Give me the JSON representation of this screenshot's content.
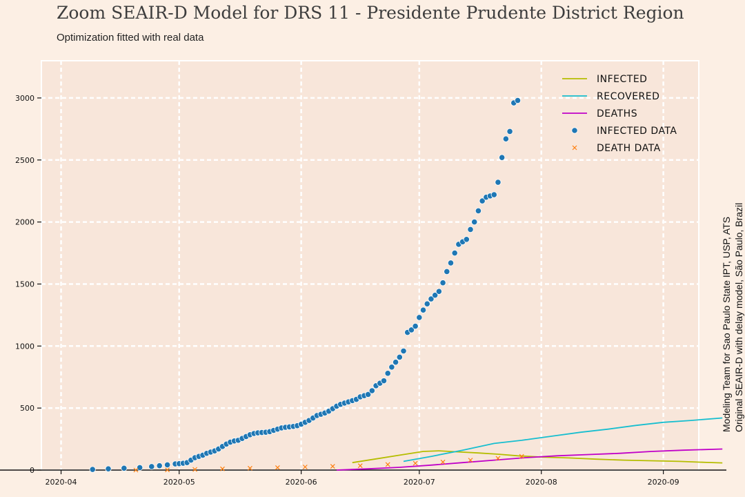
{
  "header": {
    "title": "Zoom SEAIR-D Model for DRS 11 - Presidente Prudente District Region",
    "subtitle": "Optimization fitted with real data"
  },
  "side_note": {
    "line1": "Modeling Team for Sao Paulo State IPT, USP, ATS",
    "line2": "Original SEAIR-D with delay model, São Paulo, Brazil"
  },
  "chart_data": {
    "type": "line",
    "title": "Zoom SEAIR-D Model for DRS 11 - Presidente Prudente District Region",
    "subtitle": "Optimization fitted with real data",
    "xlabel": "",
    "ylabel": "",
    "x_start_date": "2020-03-23",
    "x_ticks": [
      "2020-04",
      "2020-05",
      "2020-06",
      "2020-07",
      "2020-08",
      "2020-09"
    ],
    "y_ticks": [
      0,
      500,
      1000,
      1500,
      2000,
      2500,
      3000
    ],
    "ylim": [
      0,
      3300
    ],
    "xlim": [
      "2020-03-27",
      "2020-09-10"
    ],
    "grid": true,
    "legend_position": "top-right",
    "colors": {
      "infected": "#b5bd00",
      "recovered": "#17becf",
      "deaths": "#c000c8",
      "infected_data": "#1f77b4",
      "death_data": "#ff7f0e"
    },
    "series": [
      {
        "name": "Infected",
        "kind": "line",
        "color": "#b5bd00",
        "points": [
          [
            "2020-06-14",
            60
          ],
          [
            "2020-06-20",
            90
          ],
          [
            "2020-06-26",
            120
          ],
          [
            "2020-07-02",
            150
          ],
          [
            "2020-07-06",
            155
          ],
          [
            "2020-07-10",
            148
          ],
          [
            "2020-07-16",
            138
          ],
          [
            "2020-07-21",
            128
          ],
          [
            "2020-07-26",
            115
          ],
          [
            "2020-08-01",
            105
          ],
          [
            "2020-08-08",
            98
          ],
          [
            "2020-08-15",
            88
          ],
          [
            "2020-08-22",
            80
          ],
          [
            "2020-08-29",
            75
          ],
          [
            "2020-09-05",
            70
          ],
          [
            "2020-09-12",
            62
          ],
          [
            "2020-09-16",
            58
          ]
        ]
      },
      {
        "name": "Recovered",
        "kind": "line",
        "color": "#17becf",
        "points": [
          [
            "2020-06-27",
            70
          ],
          [
            "2020-07-04",
            110
          ],
          [
            "2020-07-12",
            160
          ],
          [
            "2020-07-20",
            215
          ],
          [
            "2020-07-27",
            240
          ],
          [
            "2020-08-04",
            275
          ],
          [
            "2020-08-11",
            305
          ],
          [
            "2020-08-18",
            330
          ],
          [
            "2020-08-25",
            360
          ],
          [
            "2020-09-01",
            385
          ],
          [
            "2020-09-08",
            400
          ],
          [
            "2020-09-16",
            420
          ]
        ]
      },
      {
        "name": "Deaths",
        "kind": "line",
        "color": "#c000c8",
        "points": [
          [
            "2020-06-10",
            0
          ],
          [
            "2020-06-18",
            10
          ],
          [
            "2020-06-26",
            22
          ],
          [
            "2020-07-04",
            40
          ],
          [
            "2020-07-12",
            60
          ],
          [
            "2020-07-20",
            80
          ],
          [
            "2020-07-28",
            100
          ],
          [
            "2020-08-05",
            115
          ],
          [
            "2020-08-13",
            125
          ],
          [
            "2020-08-21",
            135
          ],
          [
            "2020-08-29",
            150
          ],
          [
            "2020-09-06",
            160
          ],
          [
            "2020-09-16",
            170
          ]
        ]
      },
      {
        "name": "Infected data",
        "kind": "scatter",
        "marker": "circle",
        "color": "#1f77b4",
        "points": [
          [
            "2020-04-09",
            5
          ],
          [
            "2020-04-13",
            10
          ],
          [
            "2020-04-17",
            15
          ],
          [
            "2020-04-21",
            20
          ],
          [
            "2020-04-24",
            28
          ],
          [
            "2020-04-26",
            35
          ],
          [
            "2020-04-28",
            42
          ],
          [
            "2020-04-30",
            50
          ],
          [
            "2020-05-01",
            52
          ],
          [
            "2020-05-02",
            55
          ],
          [
            "2020-05-03",
            60
          ],
          [
            "2020-05-04",
            80
          ],
          [
            "2020-05-05",
            100
          ],
          [
            "2020-05-06",
            110
          ],
          [
            "2020-05-07",
            120
          ],
          [
            "2020-05-08",
            135
          ],
          [
            "2020-05-09",
            145
          ],
          [
            "2020-05-10",
            155
          ],
          [
            "2020-05-11",
            170
          ],
          [
            "2020-05-12",
            190
          ],
          [
            "2020-05-13",
            210
          ],
          [
            "2020-05-14",
            225
          ],
          [
            "2020-05-15",
            235
          ],
          [
            "2020-05-16",
            240
          ],
          [
            "2020-05-17",
            255
          ],
          [
            "2020-05-18",
            270
          ],
          [
            "2020-05-19",
            285
          ],
          [
            "2020-05-20",
            295
          ],
          [
            "2020-05-21",
            300
          ],
          [
            "2020-05-22",
            303
          ],
          [
            "2020-05-23",
            305
          ],
          [
            "2020-05-24",
            310
          ],
          [
            "2020-05-25",
            320
          ],
          [
            "2020-05-26",
            330
          ],
          [
            "2020-05-27",
            340
          ],
          [
            "2020-05-28",
            345
          ],
          [
            "2020-05-29",
            348
          ],
          [
            "2020-05-30",
            352
          ],
          [
            "2020-05-31",
            358
          ],
          [
            "2020-06-01",
            370
          ],
          [
            "2020-06-02",
            385
          ],
          [
            "2020-06-03",
            400
          ],
          [
            "2020-06-04",
            420
          ],
          [
            "2020-06-05",
            440
          ],
          [
            "2020-06-06",
            450
          ],
          [
            "2020-06-07",
            460
          ],
          [
            "2020-06-08",
            475
          ],
          [
            "2020-06-09",
            495
          ],
          [
            "2020-06-10",
            515
          ],
          [
            "2020-06-11",
            530
          ],
          [
            "2020-06-12",
            540
          ],
          [
            "2020-06-13",
            550
          ],
          [
            "2020-06-14",
            560
          ],
          [
            "2020-06-15",
            570
          ],
          [
            "2020-06-16",
            590
          ],
          [
            "2020-06-17",
            600
          ],
          [
            "2020-06-18",
            610
          ],
          [
            "2020-06-19",
            640
          ],
          [
            "2020-06-20",
            680
          ],
          [
            "2020-06-21",
            700
          ],
          [
            "2020-06-22",
            720
          ],
          [
            "2020-06-23",
            780
          ],
          [
            "2020-06-24",
            830
          ],
          [
            "2020-06-25",
            870
          ],
          [
            "2020-06-26",
            910
          ],
          [
            "2020-06-27",
            960
          ],
          [
            "2020-06-28",
            1110
          ],
          [
            "2020-06-29",
            1130
          ],
          [
            "2020-06-30",
            1160
          ],
          [
            "2020-07-01",
            1230
          ],
          [
            "2020-07-02",
            1290
          ],
          [
            "2020-07-03",
            1340
          ],
          [
            "2020-07-04",
            1380
          ],
          [
            "2020-07-05",
            1410
          ],
          [
            "2020-07-06",
            1440
          ],
          [
            "2020-07-07",
            1510
          ],
          [
            "2020-07-08",
            1600
          ],
          [
            "2020-07-09",
            1670
          ],
          [
            "2020-07-10",
            1750
          ],
          [
            "2020-07-11",
            1820
          ],
          [
            "2020-07-12",
            1840
          ],
          [
            "2020-07-13",
            1860
          ],
          [
            "2020-07-14",
            1940
          ],
          [
            "2020-07-15",
            2000
          ],
          [
            "2020-07-16",
            2090
          ],
          [
            "2020-07-17",
            2170
          ],
          [
            "2020-07-18",
            2200
          ],
          [
            "2020-07-19",
            2210
          ],
          [
            "2020-07-20",
            2220
          ],
          [
            "2020-07-21",
            2320
          ],
          [
            "2020-07-22",
            2520
          ],
          [
            "2020-07-23",
            2670
          ],
          [
            "2020-07-24",
            2730
          ],
          [
            "2020-07-25",
            2960
          ],
          [
            "2020-07-26",
            2980
          ]
        ]
      },
      {
        "name": "Death data",
        "kind": "scatter",
        "marker": "x",
        "color": "#ff7f0e",
        "points": [
          [
            "2020-04-20",
            0
          ],
          [
            "2020-04-28",
            2
          ],
          [
            "2020-05-05",
            5
          ],
          [
            "2020-05-12",
            10
          ],
          [
            "2020-05-19",
            15
          ],
          [
            "2020-05-26",
            20
          ],
          [
            "2020-06-02",
            25
          ],
          [
            "2020-06-09",
            30
          ],
          [
            "2020-06-16",
            35
          ],
          [
            "2020-06-23",
            45
          ],
          [
            "2020-06-30",
            55
          ],
          [
            "2020-07-07",
            65
          ],
          [
            "2020-07-14",
            80
          ],
          [
            "2020-07-21",
            95
          ],
          [
            "2020-07-27",
            110
          ]
        ]
      }
    ]
  }
}
